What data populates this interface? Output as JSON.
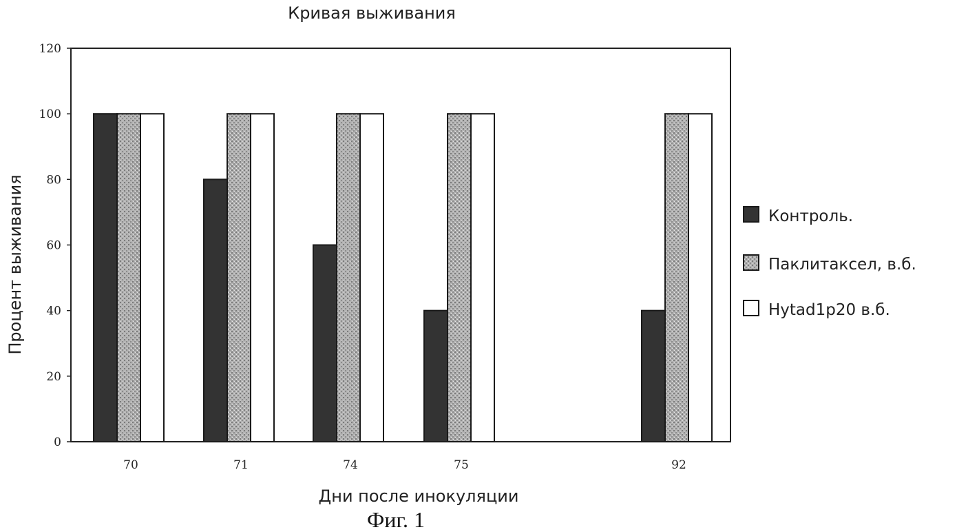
{
  "chart_data": {
    "type": "bar",
    "title": "Кривая выживания",
    "ylabel": "Процент выживания",
    "xlabel": "Дни после инокуляции",
    "categories": [
      "70",
      "71",
      "74",
      "75",
      "92"
    ],
    "ylim": [
      0,
      120
    ],
    "yticks": [
      "0",
      "20",
      "40",
      "60",
      "80",
      "100",
      "120"
    ],
    "series": [
      {
        "name": "Контроль.",
        "values": [
          100,
          80,
          60,
          40,
          40
        ],
        "color": "#333333"
      },
      {
        "name": "Паклитаксел, в.б.",
        "values": [
          100,
          100,
          100,
          100,
          100
        ],
        "color": "#a8a8a8"
      },
      {
        "name": "Hytad1p20 в.б.",
        "values": [
          100,
          100,
          100,
          100,
          100
        ],
        "color": "#ffffff"
      }
    ],
    "legend_position": "right",
    "grid": false
  },
  "caption": "Фиг. 1"
}
